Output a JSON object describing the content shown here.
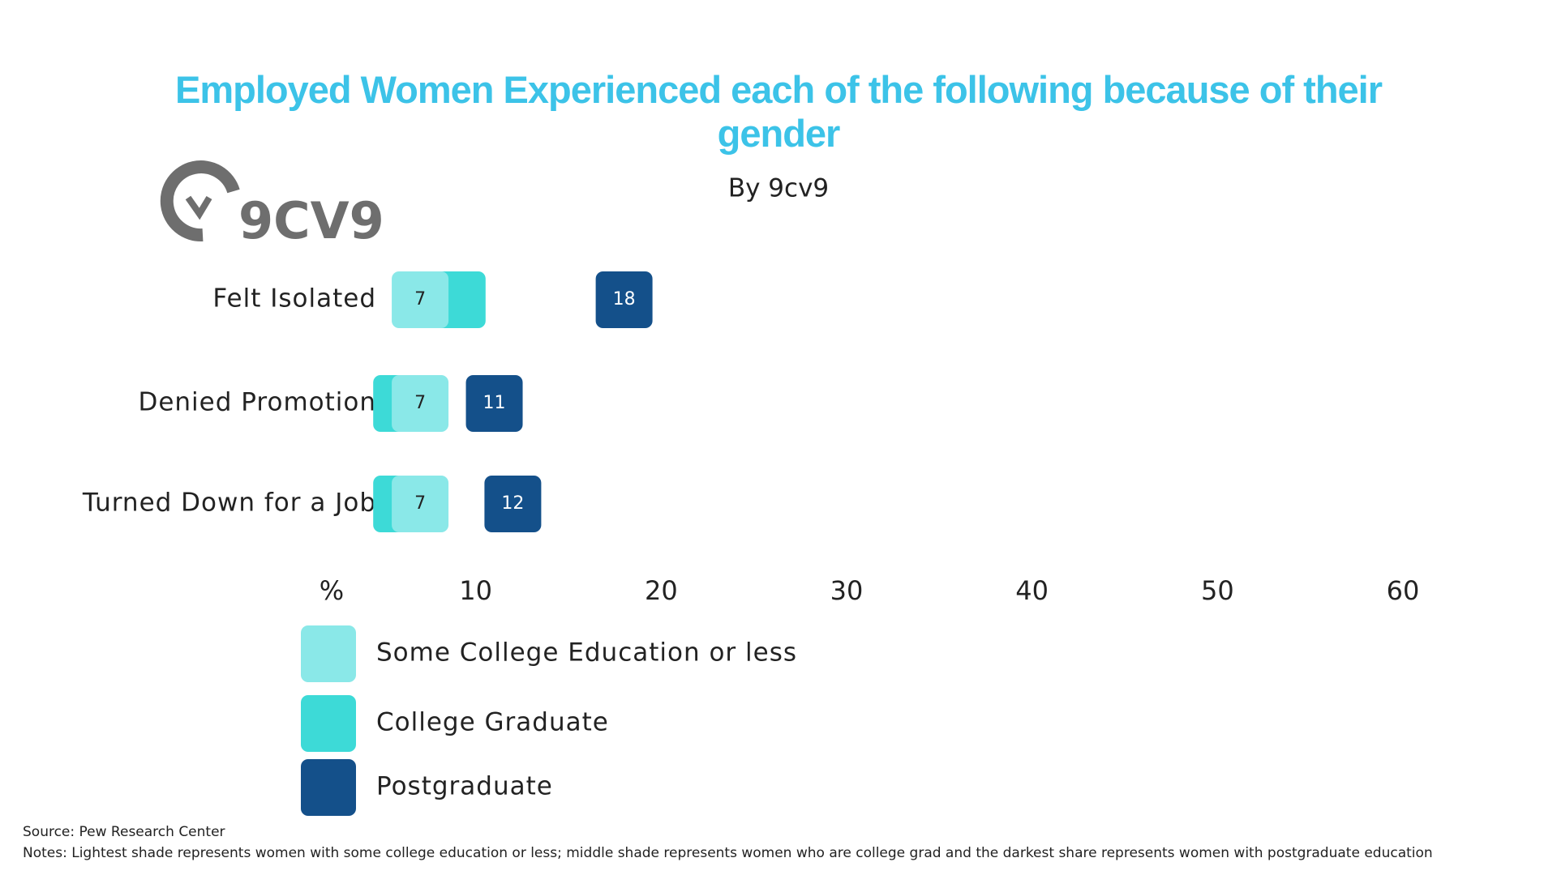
{
  "chart_data": {
    "type": "dot",
    "title": "Employed Women Experienced each of the following because of their gender",
    "subtitle": "By 9cv9",
    "logo": "9CV9",
    "x_label": "%",
    "categories": [
      "Felt Isolated",
      "Denied Promotion",
      "Turned Down for a Job"
    ],
    "series": [
      {
        "name": "Some College Education or less",
        "color": "#8ae8e8",
        "values": [
          7,
          7,
          7
        ],
        "data_labels": true,
        "label_color": "#222222"
      },
      {
        "name": "College Graduate",
        "color": "#3ddad7",
        "values": [
          9,
          6,
          6
        ],
        "data_labels": false,
        "label_color": "#222222"
      },
      {
        "name": "Postgraduate",
        "color": "#14508a",
        "values": [
          18,
          11,
          12
        ],
        "data_labels": true,
        "label_color": "#ffffff"
      }
    ],
    "xlim": [
      0,
      60
    ],
    "xticks": [
      10,
      20,
      30,
      40,
      50,
      60
    ],
    "draw_order": [
      1,
      0,
      2
    ],
    "source": "Source: Pew Research Center",
    "notes": "Notes: Lightest shade represents women with some college education or less; middle shade represents women who are college grad and the darkest share represents women with postgraduate education"
  }
}
